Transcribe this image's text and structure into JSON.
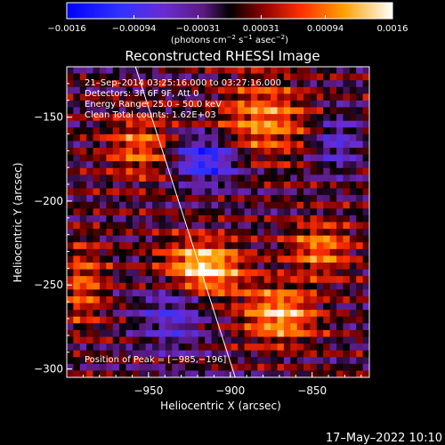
{
  "chart_data": {
    "type": "heatmap",
    "title": "Reconstructed RHESSI Image",
    "xlabel": "Heliocentric X (arcsec)",
    "ylabel": "Heliocentric Y (arcsec)",
    "xlim": [
      -1000,
      -815
    ],
    "ylim": [
      -305,
      -120
    ],
    "x_ticks": [
      {
        "value": -950,
        "label": "−950"
      },
      {
        "value": -900,
        "label": "−900"
      },
      {
        "value": -850,
        "label": "−850"
      }
    ],
    "y_ticks": [
      {
        "value": -150,
        "label": "−150"
      },
      {
        "value": -200,
        "label": "−200"
      },
      {
        "value": -250,
        "label": "−250"
      },
      {
        "value": -300,
        "label": "−300"
      }
    ],
    "colorbar": {
      "min": -0.0016,
      "max": 0.0016,
      "ticks": [
        {
          "value": -0.0016,
          "label": "−0.0016"
        },
        {
          "value": -0.00094,
          "label": "−0.00094"
        },
        {
          "value": -0.00031,
          "label": "−0.00031"
        },
        {
          "value": 0.00031,
          "label": "0.00031"
        },
        {
          "value": 0.00094,
          "label": "0.00094"
        },
        {
          "value": 0.0016,
          "label": "0.0016"
        }
      ],
      "unit_parts": [
        "(photons cm",
        "−2",
        " s",
        "−1",
        " asec",
        "−2",
        ")"
      ]
    },
    "info_lines": [
      "21–Sep–2014 03:25:16.000 to 03:27:16.000",
      "Detectors: 3F 6F 9F, Att 0",
      "Energy Range: 25.0 – 50.0 keV",
      "Clean     Total counts: 1.62E+03"
    ],
    "peak_text": "Position of Peak = [−985,−196]",
    "limb_line": [
      [
        -958,
        -120
      ],
      [
        -897,
        -305
      ]
    ],
    "grid": {
      "nx": 46,
      "ny": 46
    },
    "features": [
      {
        "x": -918,
        "y": -240,
        "sx": 18,
        "sy": 12,
        "amp": 1.0
      },
      {
        "x": -870,
        "y": -268,
        "sx": 16,
        "sy": 12,
        "amp": 0.8
      },
      {
        "x": -880,
        "y": -152,
        "sx": 20,
        "sy": 16,
        "amp": 0.65
      },
      {
        "x": -955,
        "y": -168,
        "sx": 15,
        "sy": 14,
        "amp": 0.55
      },
      {
        "x": -845,
        "y": -228,
        "sx": 14,
        "sy": 12,
        "amp": 0.6
      },
      {
        "x": -990,
        "y": -250,
        "sx": 10,
        "sy": 18,
        "amp": 0.5
      },
      {
        "x": -915,
        "y": -175,
        "sx": 14,
        "sy": 10,
        "amp": -0.8
      },
      {
        "x": -935,
        "y": -265,
        "sx": 14,
        "sy": 16,
        "amp": -0.5
      },
      {
        "x": -835,
        "y": -165,
        "sx": 10,
        "sy": 12,
        "amp": -0.45
      }
    ]
  },
  "timestamp": "17–May–2022 10:10"
}
